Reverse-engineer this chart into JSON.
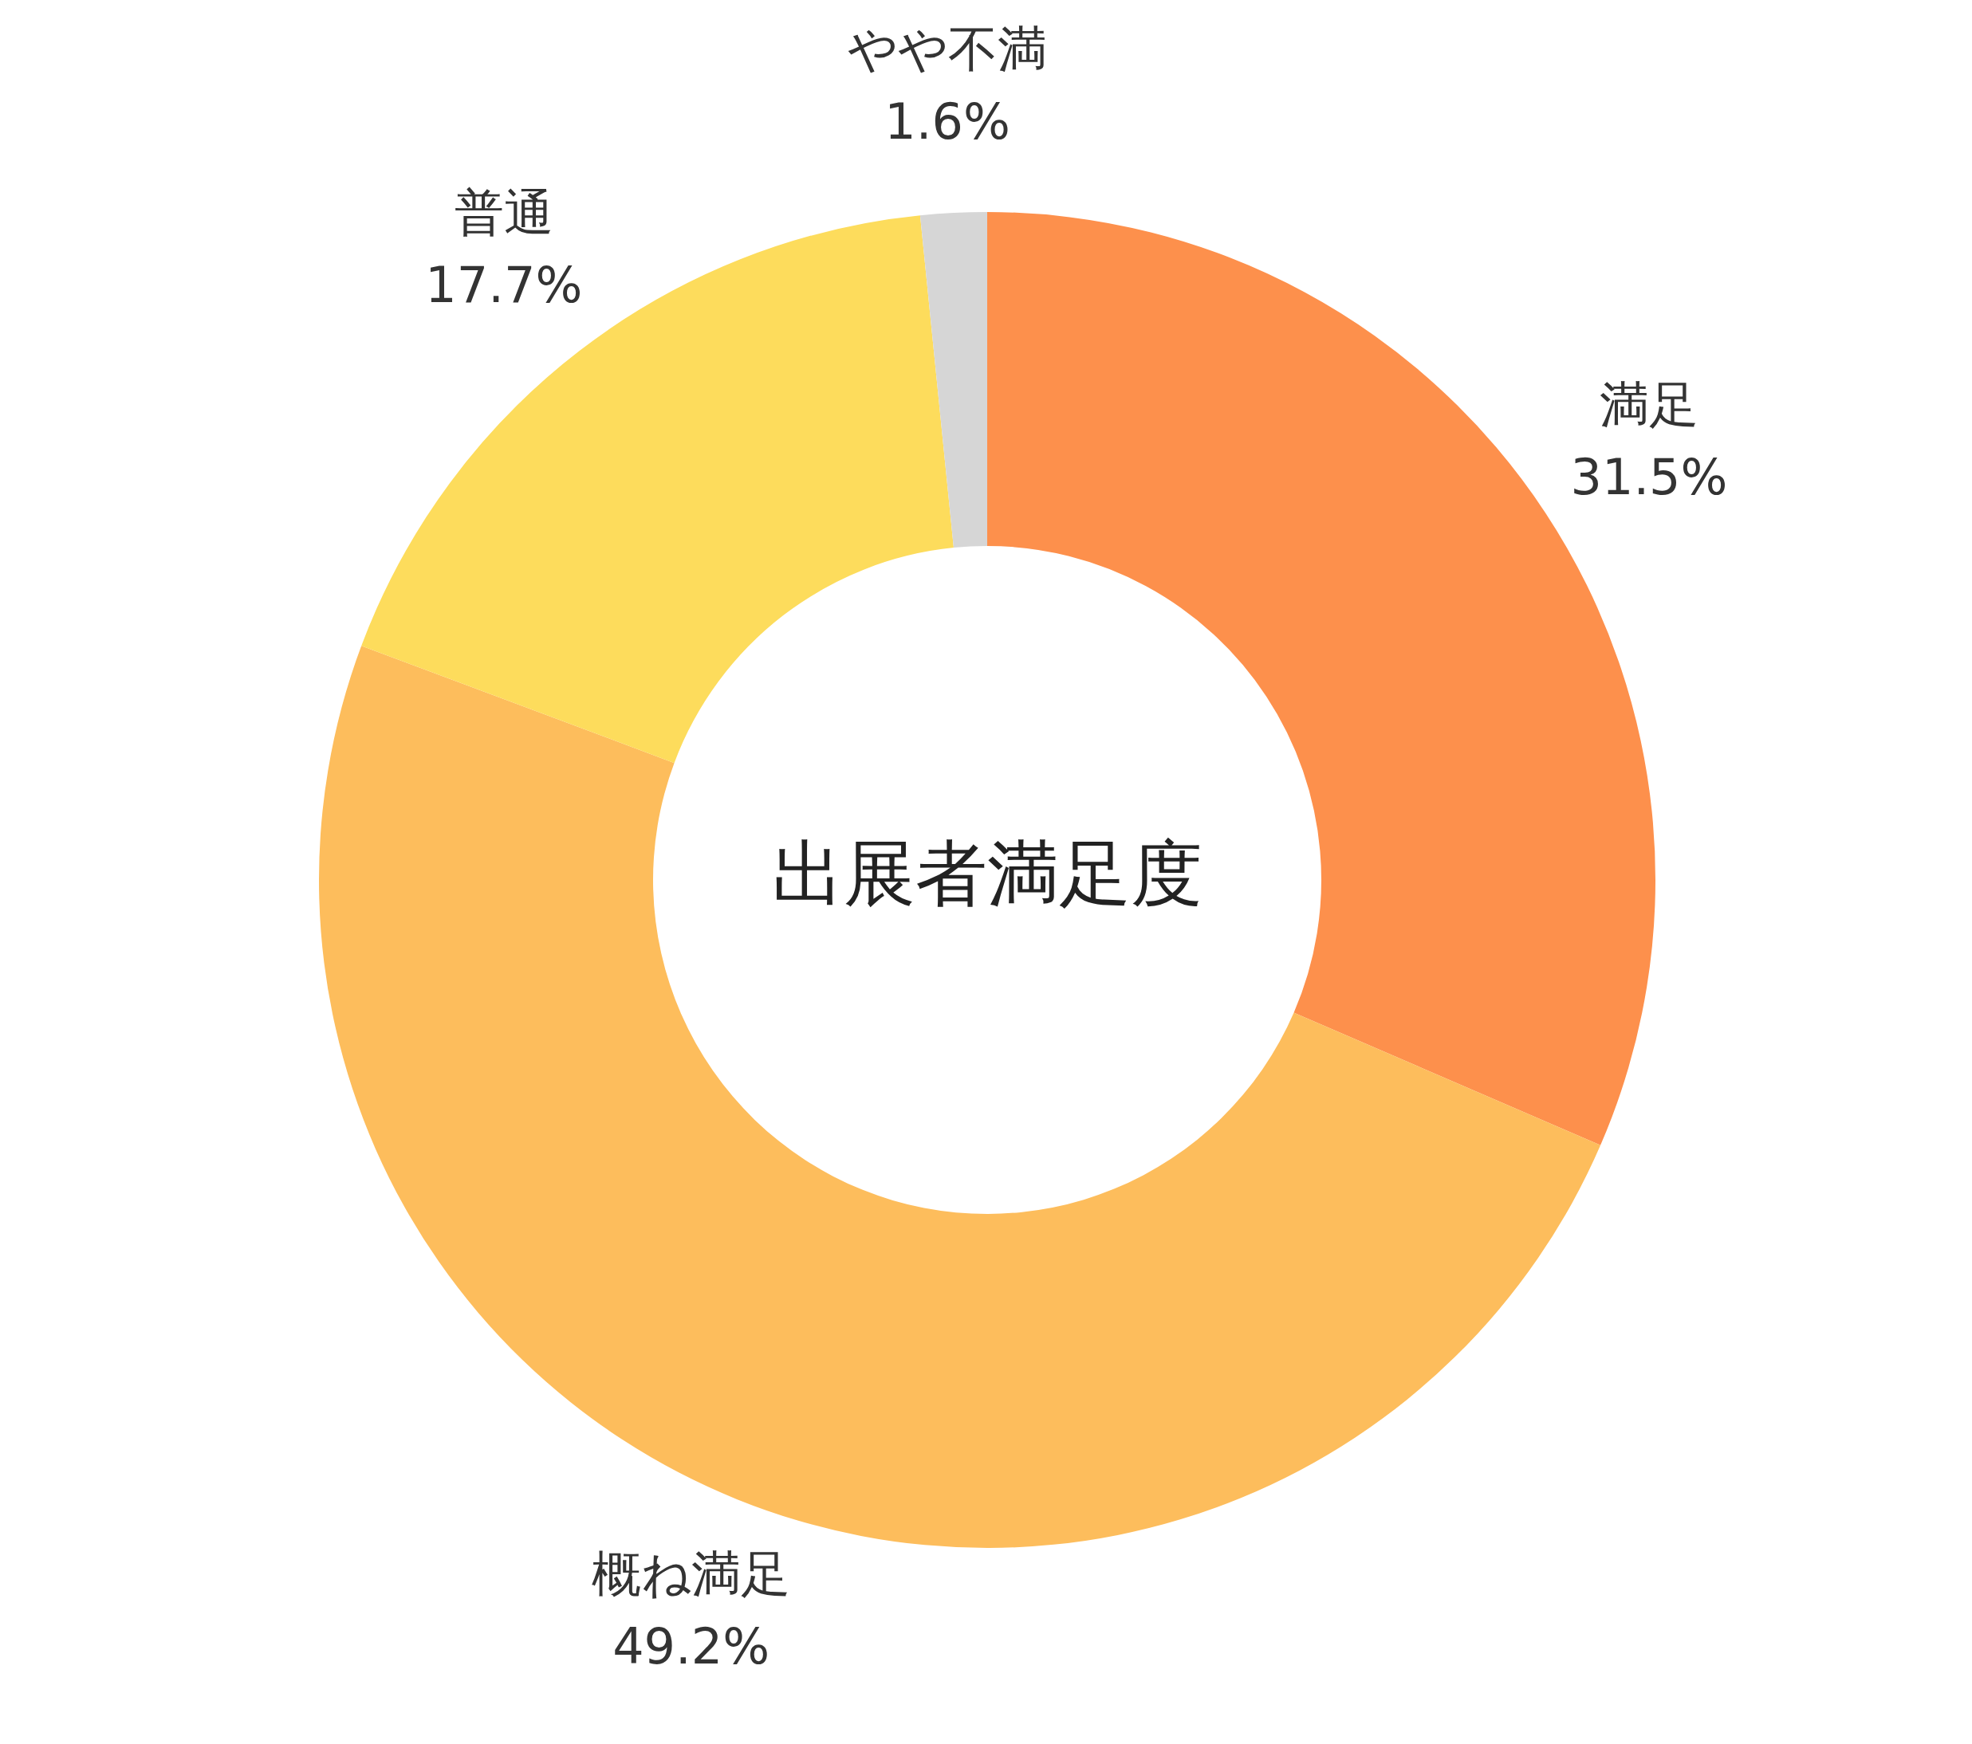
{
  "chart_data": {
    "type": "donut",
    "title": "出展者満足度",
    "categories": [
      "満足",
      "概ね満足",
      "普通",
      "やや不満"
    ],
    "values": [
      31.5,
      49.2,
      17.7,
      1.6
    ],
    "value_labels": [
      "31.5%",
      "49.2%",
      "17.7%",
      "1.6%"
    ],
    "colors": [
      "#fd904c",
      "#fdbd5c",
      "#fddc5c",
      "#d6d6d6"
    ]
  }
}
